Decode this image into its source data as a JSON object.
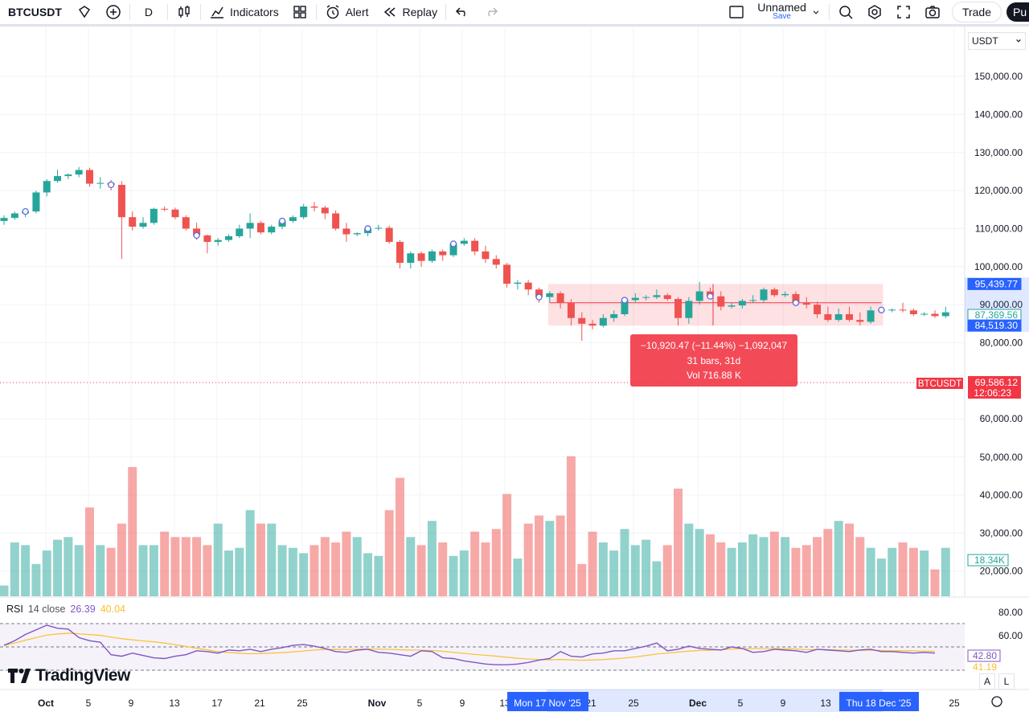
{
  "toolbar": {
    "symbol": "BTCUSDT",
    "interval": "D",
    "indicators": "Indicators",
    "alert": "Alert",
    "replay": "Replay",
    "layout_name": "Unnamed",
    "save": "Save",
    "trade": "Trade",
    "publish": "Pu"
  },
  "currency": "USDT",
  "price_scale": {
    "ticks": [
      "150,000.00",
      "140,000.00",
      "130,000.00",
      "120,000.00",
      "110,000.00",
      "100,000.00",
      "90,000.00",
      "80,000.00",
      "60,000.00",
      "50,000.00",
      "40,000.00",
      "30,000.00",
      "20,000.00"
    ],
    "range_high": "95,439.77",
    "current_price": "87,369.56",
    "range_low": "84,519.30",
    "alert_symbol": "BTCUSDT",
    "alert_price": "69,586.12",
    "countdown": "12:06:23",
    "volume_label": "18.34K"
  },
  "measure": {
    "line1": "−10,920.47 (−11.44%) −1,092,047",
    "line2": "31 bars, 31d",
    "line3": "Vol 716.88 K"
  },
  "rsi": {
    "name": "RSI",
    "params": "14 close",
    "value": "26.39",
    "ma_value": "40.04",
    "scale": [
      "80.00",
      "60.00"
    ],
    "current": "42.80",
    "ma_cut": "41.19"
  },
  "time_axis": {
    "labels": [
      "Oct",
      "5",
      "9",
      "13",
      "17",
      "21",
      "25",
      "Nov",
      "5",
      "9",
      "13",
      "21",
      "25",
      "Dec",
      "5",
      "9",
      "13",
      "25"
    ],
    "cursor_1": "Mon 17 Nov '25",
    "cursor_2": "Thu 18 Dec '25"
  },
  "brand": "TradingView",
  "axis_buttons": {
    "auto": "A",
    "log": "L"
  },
  "colors": {
    "up": "#26a69a",
    "down": "#ef5350",
    "rsi": "#7e57c2",
    "rsi_ma": "#fbc02d",
    "accent": "#2962ff"
  },
  "chart_data": {
    "type": "candlestick",
    "symbol": "BTCUSDT",
    "interval": "1D",
    "x_start": "2025-09-29",
    "candles": [
      [
        112000,
        113500,
        111000,
        112800
      ],
      [
        112800,
        114500,
        112300,
        114000
      ],
      [
        114000,
        115000,
        113000,
        114500
      ],
      [
        114500,
        120000,
        114000,
        119500
      ],
      [
        119500,
        123000,
        118500,
        122500
      ],
      [
        122500,
        125500,
        122000,
        123800
      ],
      [
        123800,
        124500,
        123000,
        124200
      ],
      [
        124200,
        126200,
        123500,
        125400
      ],
      [
        125400,
        126000,
        121000,
        121800
      ],
      [
        121800,
        123500,
        120500,
        122000
      ],
      [
        122000,
        122800,
        120000,
        121500
      ],
      [
        121500,
        122500,
        102000,
        113000
      ],
      [
        113000,
        114500,
        109500,
        110500
      ],
      [
        110500,
        113000,
        110000,
        111500
      ],
      [
        111500,
        115500,
        111000,
        115200
      ],
      [
        115200,
        115800,
        114500,
        115000
      ],
      [
        115000,
        115500,
        112500,
        113000
      ],
      [
        113000,
        113500,
        109500,
        110000
      ],
      [
        110000,
        111500,
        107000,
        108200
      ],
      [
        108200,
        108500,
        103500,
        106500
      ],
      [
        106500,
        107500,
        105500,
        107000
      ],
      [
        107000,
        108500,
        106500,
        108000
      ],
      [
        108000,
        111000,
        107500,
        110000
      ],
      [
        110000,
        114000,
        107500,
        111500
      ],
      [
        111500,
        112000,
        108500,
        109000
      ],
      [
        109000,
        111000,
        108500,
        110500
      ],
      [
        110500,
        112500,
        109800,
        112000
      ],
      [
        112000,
        113500,
        111500,
        113000
      ],
      [
        113000,
        116500,
        112500,
        115800
      ],
      [
        115800,
        117000,
        114500,
        115500
      ],
      [
        115500,
        116000,
        112500,
        114000
      ],
      [
        114000,
        114800,
        109500,
        110000
      ],
      [
        110000,
        111500,
        106500,
        108500
      ],
      [
        108500,
        109000,
        108000,
        108800
      ],
      [
        108800,
        110500,
        108000,
        110000
      ],
      [
        110000,
        111000,
        109500,
        110200
      ],
      [
        110200,
        110800,
        106000,
        106500
      ],
      [
        106500,
        107000,
        99500,
        101000
      ],
      [
        101000,
        104000,
        99500,
        103500
      ],
      [
        103500,
        104000,
        100000,
        101500
      ],
      [
        101500,
        104500,
        101000,
        104000
      ],
      [
        104000,
        104500,
        101500,
        103000
      ],
      [
        103000,
        106500,
        102500,
        106000
      ],
      [
        106000,
        107500,
        105500,
        106800
      ],
      [
        106800,
        107500,
        103000,
        104000
      ],
      [
        104000,
        105500,
        101000,
        102000
      ],
      [
        102000,
        103000,
        99500,
        100500
      ],
      [
        100500,
        101000,
        94500,
        95500
      ],
      [
        95500,
        96500,
        94000,
        95800
      ],
      [
        95800,
        96500,
        92500,
        94000
      ],
      [
        94000,
        94500,
        90500,
        92000
      ],
      [
        92000,
        93500,
        90500,
        93000
      ],
      [
        93000,
        93500,
        89000,
        90500
      ],
      [
        90500,
        91500,
        84500,
        86500
      ],
      [
        86500,
        88000,
        80500,
        85000
      ],
      [
        85000,
        86000,
        83500,
        84500
      ],
      [
        84500,
        87500,
        84000,
        86500
      ],
      [
        86500,
        88500,
        85500,
        87500
      ],
      [
        87500,
        91500,
        87000,
        91200
      ],
      [
        91200,
        93000,
        90500,
        91800
      ],
      [
        91800,
        92500,
        91200,
        92000
      ],
      [
        92000,
        94000,
        91500,
        92500
      ],
      [
        92500,
        93000,
        91000,
        91500
      ],
      [
        91500,
        92000,
        84500,
        86500
      ],
      [
        86500,
        92000,
        85000,
        91000
      ],
      [
        91000,
        96000,
        90000,
        93500
      ],
      [
        93500,
        94500,
        92000,
        92200
      ],
      [
        92200,
        93500,
        88500,
        89500
      ],
      [
        89500,
        90500,
        89000,
        89800
      ],
      [
        89800,
        91500,
        89000,
        91000
      ],
      [
        91000,
        92500,
        90500,
        91200
      ],
      [
        91200,
        94500,
        90500,
        94000
      ],
      [
        94000,
        94500,
        92000,
        92500
      ],
      [
        92500,
        93500,
        92000,
        92800
      ],
      [
        92800,
        93500,
        90000,
        90500
      ],
      [
        90500,
        92000,
        89000,
        90000
      ],
      [
        90000,
        90800,
        86500,
        87500
      ],
      [
        87500,
        89500,
        85500,
        86000
      ],
      [
        86000,
        89000,
        85500,
        87500
      ],
      [
        87500,
        89500,
        85500,
        86000
      ],
      [
        86000,
        88000,
        84500,
        85500
      ],
      [
        85500,
        89500,
        85000,
        88500
      ],
      [
        88500,
        89000,
        88000,
        88600
      ],
      [
        88600,
        89000,
        88000,
        88700
      ],
      [
        88700,
        90500,
        88000,
        88500
      ],
      [
        88500,
        89000,
        87000,
        87500
      ],
      [
        87500,
        88000,
        87000,
        87600
      ],
      [
        87600,
        88500,
        86500,
        87000
      ],
      [
        87000,
        89500,
        86500,
        88000
      ]
    ],
    "volume_k": [
      4,
      20,
      19,
      12,
      17,
      21,
      22,
      19,
      33,
      19,
      18,
      27,
      48,
      19,
      19,
      24,
      22,
      22,
      22,
      19,
      27,
      17,
      18,
      32,
      27,
      27,
      19,
      18,
      16,
      19,
      22,
      20,
      24,
      22,
      16,
      15,
      32,
      44,
      22,
      19,
      28,
      20,
      15,
      17,
      24,
      20,
      25,
      38,
      14,
      27,
      30,
      28,
      30,
      52,
      12,
      24,
      20,
      17,
      25,
      19,
      21,
      13,
      19,
      40,
      27,
      25,
      23,
      20,
      18,
      20,
      23,
      22,
      24,
      22,
      18,
      19,
      22,
      25,
      28,
      27,
      22,
      18,
      14,
      18,
      20,
      18,
      17,
      10,
      18
    ],
    "measure_range": {
      "high": 95439.77,
      "low": 84519.3,
      "change": -10920.47,
      "change_pct": -11.44,
      "bars": 31
    },
    "rsi": {
      "value": 26.39,
      "ma": 40.04,
      "current": 42.8
    }
  }
}
